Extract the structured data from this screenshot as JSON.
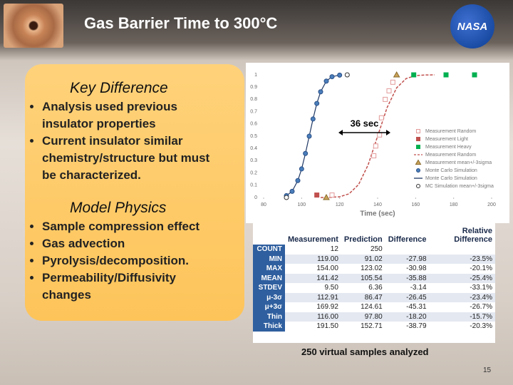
{
  "header": {
    "title": "Gas Barrier Time to 300°C",
    "logo": "NASA"
  },
  "panel": {
    "sections": [
      {
        "heading": "Key Difference",
        "bullets": [
          "Analysis used previous insulator properties",
          "Current insulator similar chemistry/structure but must be characterized."
        ]
      },
      {
        "heading": "Model Physics",
        "bullets": [
          "Sample compression effect",
          "Gas advection",
          "Pyrolysis/decomposition.",
          "Permeability/Diffusivity changes"
        ]
      }
    ]
  },
  "chart_data": {
    "type": "scatter",
    "x_label": "Time (sec)",
    "annotation": "36 sec",
    "xlim": [
      80,
      200
    ],
    "xticks": [
      80,
      100,
      120,
      140,
      160,
      180,
      200
    ],
    "ylim": [
      0,
      1
    ],
    "yticks": [
      0,
      0.1,
      0.2,
      0.3,
      0.4,
      0.5,
      0.6,
      0.7,
      0.8,
      0.9,
      1
    ],
    "grid": false,
    "legend": "lower right",
    "series": [
      {
        "name": "Measurement Random",
        "style": "square-open",
        "color": "#e39a9a",
        "x": [
          116,
          138,
          139,
          141,
          142,
          144,
          146,
          148
        ],
        "values": [
          0.02,
          0.34,
          0.42,
          0.51,
          0.65,
          0.8,
          0.87,
          0.94
        ]
      },
      {
        "name": "Measurement Light",
        "style": "square",
        "color": "#c0504d",
        "x": [
          108
        ],
        "values": [
          0.02
        ]
      },
      {
        "name": "Measurement Heavy",
        "style": "square",
        "color": "#00b050",
        "x": [
          159,
          176,
          191
        ],
        "values": [
          1,
          1,
          1
        ]
      },
      {
        "name": "Measurement Random",
        "style": "dashed",
        "color": "#c0504d",
        "x": [
          110,
          115,
          120,
          125,
          130,
          135,
          140,
          145,
          150,
          155,
          160,
          165,
          170
        ],
        "values": [
          0,
          0.001,
          0.006,
          0.03,
          0.106,
          0.266,
          0.5,
          0.734,
          0.894,
          0.97,
          0.994,
          0.999,
          1
        ]
      },
      {
        "name": "Measurement mean+/-3sigma",
        "style": "triangle",
        "color": "#c9a35a",
        "x": [
          113,
          150
        ],
        "values": [
          0,
          1
        ]
      },
      {
        "name": "Monte Carlo Simulation",
        "style": "circle",
        "color": "#4a7ebb",
        "x": [
          92,
          95,
          98,
          100,
          102,
          104,
          106,
          108,
          110,
          113,
          116,
          120
        ],
        "values": [
          0.015,
          0.05,
          0.138,
          0.233,
          0.359,
          0.5,
          0.64,
          0.767,
          0.862,
          0.949,
          0.985,
          0.998
        ]
      },
      {
        "name": "Monte Carlo Simulation",
        "style": "solid",
        "color": "#1f3864",
        "x": [
          92,
          95,
          98,
          100,
          102,
          104,
          106,
          108,
          110,
          113,
          116,
          120
        ],
        "values": [
          0.015,
          0.05,
          0.138,
          0.233,
          0.359,
          0.5,
          0.64,
          0.767,
          0.862,
          0.949,
          0.985,
          0.998
        ]
      },
      {
        "name": "MC Simulation mean+/-3sigma",
        "style": "circle-open",
        "color": "#333333",
        "x": [
          92,
          124
        ],
        "values": [
          0,
          1
        ]
      }
    ]
  },
  "table": {
    "columns": [
      "Measurement",
      "Prediction",
      "Difference",
      "Relative Difference"
    ],
    "rows": [
      [
        "COUNT",
        "12",
        "250",
        "",
        ""
      ],
      [
        "MIN",
        "119.00",
        "91.02",
        "-27.98",
        "-23.5%"
      ],
      [
        "MAX",
        "154.00",
        "123.02",
        "-30.98",
        "-20.1%"
      ],
      [
        "MEAN",
        "141.42",
        "105.54",
        "-35.88",
        "-25.4%"
      ],
      [
        "STDEV",
        "9.50",
        "6.36",
        "-3.14",
        "-33.1%"
      ],
      [
        "μ-3σ",
        "112.91",
        "86.47",
        "-26.45",
        "-23.4%"
      ],
      [
        "μ+3σ",
        "169.92",
        "124.61",
        "-45.31",
        "-26.7%"
      ],
      [
        "Thin",
        "116.00",
        "97.80",
        "-18.20",
        "-15.7%"
      ],
      [
        "Thick",
        "191.50",
        "152.71",
        "-38.79",
        "-20.3%"
      ]
    ]
  },
  "caption": "250 virtual samples analyzed",
  "page_number": "15"
}
